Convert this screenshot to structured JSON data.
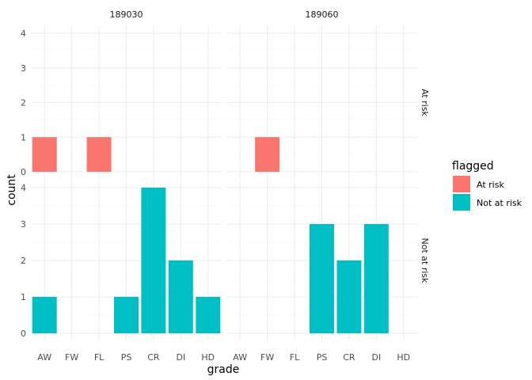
{
  "chart_data": {
    "type": "bar",
    "xlabel": "grade",
    "ylabel": "count",
    "categories": [
      "AW",
      "FW",
      "FL",
      "PS",
      "CR",
      "DI",
      "HD"
    ],
    "ylim": [
      0,
      4
    ],
    "yticks": [
      "0",
      "1",
      "2",
      "3",
      "4"
    ],
    "grid": true,
    "facet_columns": [
      "189030",
      "189060"
    ],
    "facet_rows": [
      "At risk",
      "Not at risk"
    ],
    "legend": {
      "title": "flagged",
      "placement": "right",
      "entries": [
        {
          "label": "At risk",
          "color": "#F8766D"
        },
        {
          "label": "Not at risk",
          "color": "#00BFC4"
        }
      ]
    },
    "panels": [
      {
        "column": "189030",
        "row": "At risk",
        "fill": "#F8766D",
        "values": [
          1,
          0,
          1,
          0,
          0,
          0,
          0
        ]
      },
      {
        "column": "189060",
        "row": "At risk",
        "fill": "#F8766D",
        "values": [
          0,
          1,
          0,
          0,
          0,
          0,
          0
        ]
      },
      {
        "column": "189030",
        "row": "Not at risk",
        "fill": "#00BFC4",
        "values": [
          1,
          0,
          0,
          1,
          4,
          2,
          1
        ]
      },
      {
        "column": "189060",
        "row": "Not at risk",
        "fill": "#00BFC4",
        "values": [
          0,
          0,
          0,
          3,
          2,
          3,
          0
        ]
      }
    ]
  }
}
